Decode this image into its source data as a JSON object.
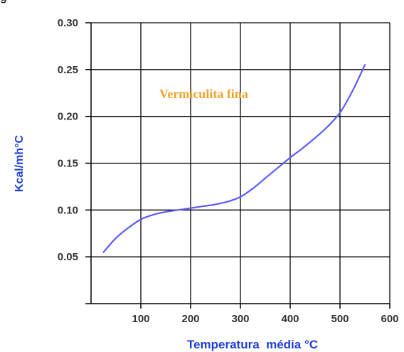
{
  "top_fragment": "g",
  "colors": {
    "curve": "#5a5aff",
    "axis_title": "#1f3fd6",
    "annotation": "#f0a22e",
    "grid": "#000000",
    "tick_text": "#333333"
  },
  "chart_data": {
    "type": "line",
    "title": "",
    "xlabel": "Temperatura  média °C",
    "ylabel": "Kcal/mh°C",
    "xlim": [
      0,
      600
    ],
    "ylim": [
      0,
      0.3
    ],
    "x_ticks": [
      100,
      200,
      300,
      400,
      500,
      600
    ],
    "x_tick_labels": [
      "100",
      "200",
      "300",
      "400",
      "500",
      "600"
    ],
    "y_ticks": [
      0.05,
      0.1,
      0.15,
      0.2,
      0.25,
      0.3
    ],
    "y_tick_labels": [
      "0.05",
      "0.10",
      "0.15",
      "0.20",
      "0.25",
      "0.30"
    ],
    "grid": true,
    "annotation": "Vermiculita fina",
    "series": [
      {
        "name": "",
        "x": [
          25,
          50,
          75,
          100,
          125,
          150,
          175,
          200,
          225,
          250,
          275,
          300,
          325,
          350,
          375,
          400,
          425,
          450,
          475,
          500,
          525,
          550
        ],
        "values": [
          0.055,
          0.07,
          0.081,
          0.09,
          0.095,
          0.098,
          0.1,
          0.102,
          0.104,
          0.106,
          0.109,
          0.114,
          0.123,
          0.134,
          0.145,
          0.156,
          0.166,
          0.177,
          0.189,
          0.204,
          0.227,
          0.255
        ]
      }
    ]
  }
}
